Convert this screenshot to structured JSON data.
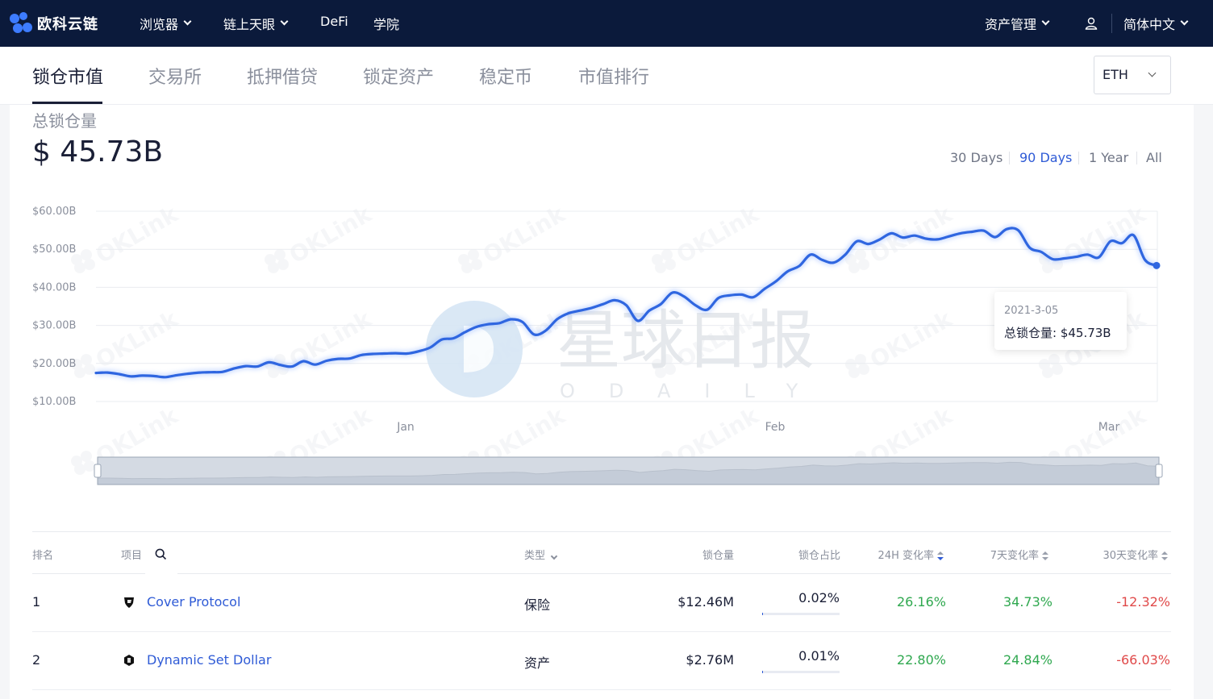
{
  "topnav": {
    "logo_text": "欧科云链",
    "items": [
      {
        "label": "浏览器",
        "dropdown": true
      },
      {
        "label": "链上天眼",
        "dropdown": true
      },
      {
        "label": "DeFi",
        "dropdown": false
      },
      {
        "label": "学院",
        "dropdown": false
      }
    ],
    "asset_mgmt": "资产管理",
    "language": "简体中文"
  },
  "tabs": [
    {
      "label": "锁仓市值",
      "active": true
    },
    {
      "label": "交易所",
      "active": false
    },
    {
      "label": "抵押借贷",
      "active": false
    },
    {
      "label": "锁定资产",
      "active": false
    },
    {
      "label": "稳定币",
      "active": false
    },
    {
      "label": "市值排行",
      "active": false
    }
  ],
  "currency_select": {
    "value": "ETH"
  },
  "summary": {
    "label": "总锁仓量",
    "value": "$ 45.73B"
  },
  "ranges": [
    {
      "label": "30 Days",
      "active": false
    },
    {
      "label": "90 Days",
      "active": true
    },
    {
      "label": "1 Year",
      "active": false
    },
    {
      "label": "All",
      "active": false
    }
  ],
  "tooltip": {
    "date": "2021-3-05",
    "text": "总锁仓量: $45.73B"
  },
  "watermark": {
    "brand_cn": "星球日报",
    "brand_en": "ODAILY",
    "repeat": "OKLink"
  },
  "colors": {
    "accent": "#2f5bd6",
    "line": "#2f66e0",
    "positive": "#2fa84f",
    "negative": "#e04a4a",
    "nav_bg": "#0b1a3b"
  },
  "chart_data": {
    "type": "line",
    "x_labels": [
      "Jan",
      "Feb",
      "Mar"
    ],
    "y_ticks": [
      "$60.00B",
      "$50.00B",
      "$40.00B",
      "$30.00B",
      "$20.00B",
      "$10.00B"
    ],
    "ylim": [
      10,
      60
    ],
    "unit": "billion USD",
    "series": [
      {
        "values": [
          17.5,
          17.6,
          17.2,
          16.6,
          16.8,
          16.7,
          16.4,
          16.9,
          17.3,
          17.6,
          17.7,
          17.8,
          18.7,
          19.3,
          19.2,
          20.3,
          19.6,
          19.2,
          20.6,
          19.7,
          20.7,
          21.2,
          21.3,
          22.2,
          22.5,
          22.6,
          22.7,
          22.6,
          23.2,
          24.2,
          26.3,
          26.6,
          28.2,
          29.6,
          30.3,
          30.6,
          31.6,
          30.9,
          27.6,
          28.6,
          31.6,
          33.2,
          33.9,
          34.6,
          35.6,
          36.6,
          35.3,
          31.2,
          33.9,
          35.6,
          38.6,
          37.6,
          35.3,
          34.1,
          37.2,
          37.9,
          38.1,
          37.4,
          39.6,
          41.6,
          44.2,
          45.6,
          48.6,
          47.2,
          46.5,
          48.6,
          52.1,
          51.4,
          52.6,
          54.2,
          53.1,
          53.6,
          52.8,
          52.6,
          53.4,
          54.2,
          54.6,
          54.9,
          53.2,
          55.3,
          55.0,
          50.4,
          49.3,
          47.4,
          47.6,
          48.0,
          48.6,
          47.9,
          52.1,
          51.6,
          53.7,
          47.2,
          45.73
        ]
      }
    ],
    "last_point": {
      "date": "2021-3-05",
      "value": 45.73
    },
    "grid": true,
    "range_selector": "full"
  },
  "table": {
    "headers": {
      "rank": "排名",
      "project": "项目",
      "type": "类型",
      "tvl": "锁仓量",
      "share": "锁仓占比",
      "ch24": "24H 变化率",
      "ch7": "7天变化率",
      "ch30": "30天变化率"
    },
    "rows": [
      {
        "rank": "1",
        "name": "Cover Protocol",
        "type": "保险",
        "tvl": "$12.46M",
        "share": "0.02%",
        "share_value": 0.02,
        "ch24": "26.16%",
        "ch7": "34.73%",
        "ch30": "-12.32%"
      },
      {
        "rank": "2",
        "name": "Dynamic Set Dollar",
        "type": "资产",
        "tvl": "$2.76M",
        "share": "0.01%",
        "share_value": 0.01,
        "ch24": "22.80%",
        "ch7": "24.84%",
        "ch30": "-66.03%"
      }
    ]
  }
}
